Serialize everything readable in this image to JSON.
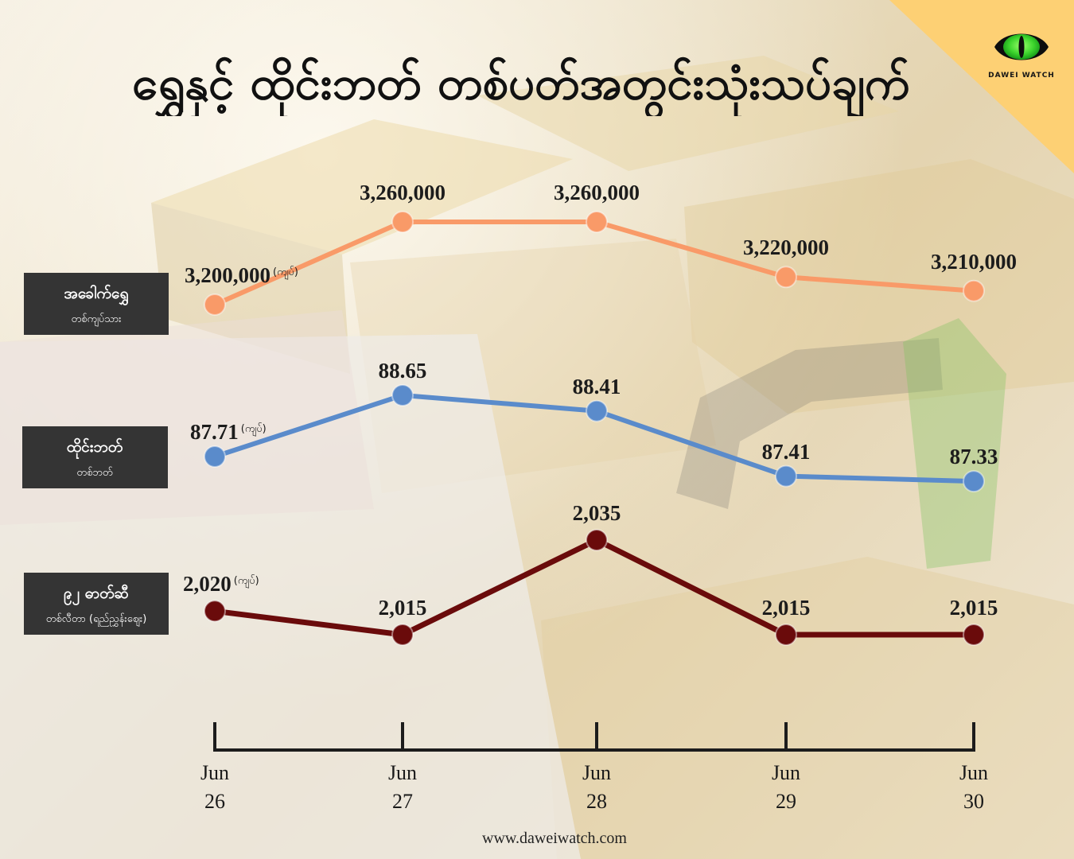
{
  "title": "ရွှေနှင့် ထိုင်းဘတ် တစ်ပတ်အတွင်းသုံးသပ်ချက်",
  "logo": {
    "icon": "green-eye-icon",
    "text": "DAWEI WATCH",
    "corner_color": "#FDD074"
  },
  "footer": {
    "website": "www.daweiwatch.com"
  },
  "chart_data": {
    "type": "line",
    "categories": [
      "Jun 26",
      "Jun 27",
      "Jun 28",
      "Jun 29",
      "Jun 30"
    ],
    "currency_note": "(ကျပ်)",
    "legend_placement": "left",
    "grid": false,
    "series": [
      {
        "name": "အခေါက်ရွှေ",
        "sublabel": "တစ်ကျပ်သား",
        "color": "#F99A68",
        "values": [
          3200000,
          3260000,
          3260000,
          3220000,
          3210000
        ],
        "labels": [
          "3,200,000",
          "3,260,000",
          "3,260,000",
          "3,220,000",
          "3,210,000"
        ]
      },
      {
        "name": "ထိုင်းဘတ်",
        "sublabel": "တစ်ဘတ်",
        "color": "#5A8BCB",
        "values": [
          87.71,
          88.65,
          88.41,
          87.41,
          87.33
        ],
        "labels": [
          "87.71",
          "88.65",
          "88.41",
          "87.41",
          "87.33"
        ]
      },
      {
        "name": "၉၂ ဓာတ်ဆီ",
        "sublabel": "တစ်လီတာ (ရည်ညွှန်းဈေး)",
        "color": "#6A0B0B",
        "values": [
          2020,
          2015,
          2035,
          2015,
          2015
        ],
        "labels": [
          "2,020",
          "2,015",
          "2,035",
          "2,015",
          "2,015"
        ]
      }
    ]
  }
}
